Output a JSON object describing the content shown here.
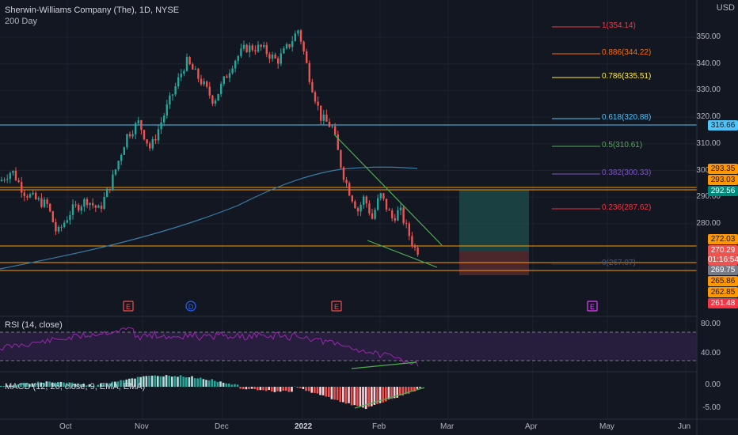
{
  "header": {
    "title": "Sherwin-Williams Company (The), 1D, NYSE",
    "sub": "200 Day",
    "currency": "USD"
  },
  "price_axis": [
    "350.00",
    "340.00",
    "330.00",
    "320.00",
    "310.00",
    "300.00",
    "290.00",
    "280.00"
  ],
  "time_axis": [
    "Oct",
    "Nov",
    "Dec",
    "2022",
    "Feb",
    "Mar",
    "Apr",
    "May",
    "Jun"
  ],
  "fib": [
    {
      "label": "1(354.14)",
      "color": "#f23645"
    },
    {
      "label": "0.886(344.22)",
      "color": "#ff6d00"
    },
    {
      "label": "0.786(335.51)",
      "color": "#ffeb3b"
    },
    {
      "label": "0.618(320.88)",
      "color": "#4fc3f7"
    },
    {
      "label": "0.5(310.61)",
      "color": "#4caf50"
    },
    {
      "label": "0.382(300.33)",
      "color": "#7e57c2"
    },
    {
      "label": "0.236(287.62)",
      "color": "#f23645"
    },
    {
      "label": "0(267.07)",
      "color": "#2a3a55"
    }
  ],
  "price_tags": {
    "t316": "316.66",
    "t293a": "293.35",
    "t293b": "293.03",
    "t292": "292.56",
    "t272": "272.03",
    "t270": "270.29",
    "timer": "01:16:54",
    "t269": "269.75",
    "t265": "265.86",
    "t262": "262.85",
    "t261": "261.48"
  },
  "events": [
    "E",
    "D",
    "E",
    "E"
  ],
  "rsi": {
    "label": "RSI (14, close)",
    "levels": [
      "80.00",
      "40.00"
    ]
  },
  "macd": {
    "label": "MACD (12, 26, close, 9, EMA, EMA)",
    "levels": [
      "0.00",
      "-5.00"
    ]
  },
  "colors": {
    "up": "#26a69a",
    "down": "#ef5350",
    "bg": "#131722",
    "orange": "#ff9800",
    "cyan": "#00bcd4",
    "green": "#4caf50"
  }
}
